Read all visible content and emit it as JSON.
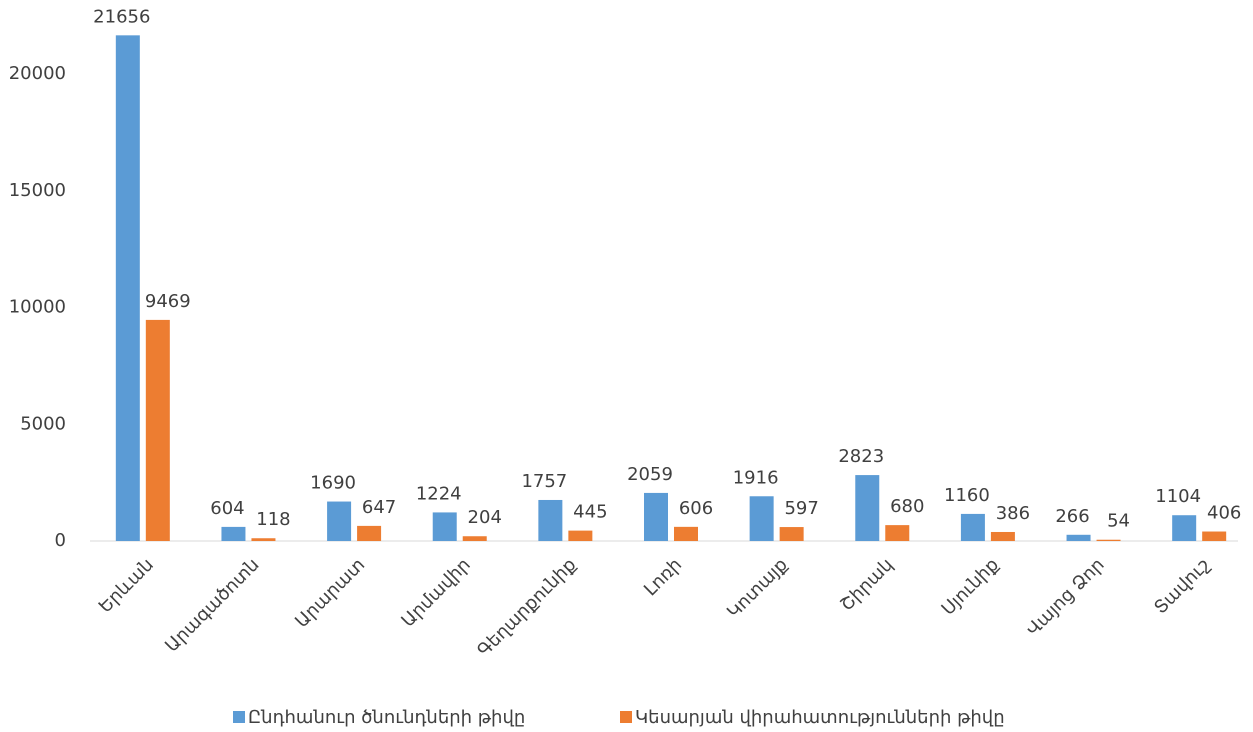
{
  "chart_data": {
    "type": "bar",
    "categories": [
      "Երևան",
      "Արագածոտն",
      "Արարատ",
      "Արմավիր",
      "Գեղարքունիք",
      "Լոռի",
      "Կոտայք",
      "Շիրակ",
      "Սյունիք",
      "Վայոց Ձոր",
      "Տավուշ"
    ],
    "series": [
      {
        "name": "Ընդհանուր ծնունդների թիվը",
        "color": "#5b9bd5",
        "values": [
          21656,
          604,
          1690,
          1224,
          1757,
          2059,
          1916,
          2823,
          1160,
          266,
          1104
        ]
      },
      {
        "name": "Կեսարյան վիրահատությունների թիվը",
        "color": "#ed7d31",
        "values": [
          9469,
          118,
          647,
          204,
          445,
          606,
          597,
          680,
          386,
          54,
          406
        ]
      }
    ],
    "ylim": [
      0,
      22000
    ],
    "yticks": [
      0,
      5000,
      10000,
      15000,
      20000
    ],
    "grid": false,
    "legend": "bottom"
  }
}
